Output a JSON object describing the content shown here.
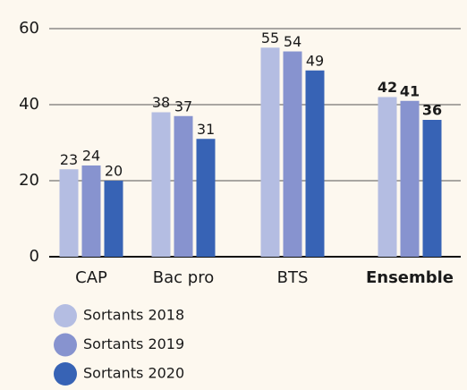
{
  "chart_data": {
    "type": "bar",
    "categories": [
      "CAP",
      "Bac pro",
      "BTS",
      "Ensemble"
    ],
    "series": [
      {
        "name": "Sortants 2018",
        "color": "#b4bde2",
        "values": [
          23,
          38,
          55,
          42
        ]
      },
      {
        "name": "Sortants 2019",
        "color": "#8793cf",
        "values": [
          24,
          37,
          54,
          41
        ]
      },
      {
        "name": "Sortants 2020",
        "color": "#3763b5",
        "values": [
          20,
          31,
          49,
          36
        ]
      }
    ],
    "ylim": [
      0,
      60
    ],
    "yticks": [
      0,
      20,
      40,
      60
    ],
    "grid": true,
    "legend": "bottom-left"
  }
}
